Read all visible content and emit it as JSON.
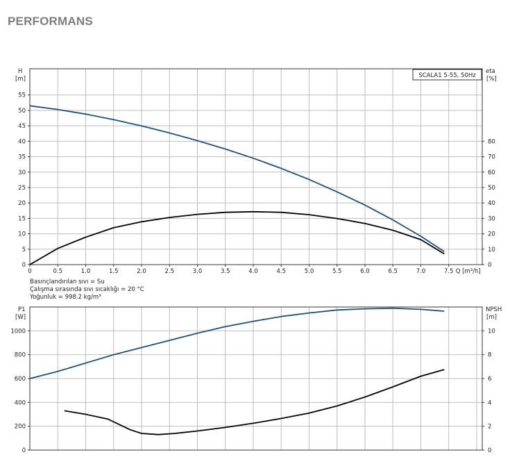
{
  "page": {
    "title": "PERFORMANS"
  },
  "colors": {
    "head_curve": "#1f4e79",
    "efficiency_curve": "#000000",
    "power_curve": "#1f4e79",
    "npsh_curve": "#000000",
    "grid": "#bdbdbd"
  },
  "notes": [
    "Basınçlandırılan sıvı = Su",
    "Çalışma sırasında sıvı sıcaklığı = 20 °C",
    "Yoğunluk = 998.2 kg/m³"
  ],
  "chart_data": [
    {
      "type": "line",
      "legend_label": "SCALA1 5-55, 50Hz",
      "xlabel": "Q [m³/h]",
      "x_ticks": [
        "0",
        "0.5",
        "1.0",
        "1.5",
        "2.0",
        "2.5",
        "3.0",
        "3.5",
        "4.0",
        "4.5",
        "5.0",
        "5.5",
        "6.0",
        "6.5",
        "7.0",
        "7.5"
      ],
      "xlim": [
        0,
        8.1
      ],
      "y_left": {
        "label": "H",
        "unit": "[m]",
        "ticks": [
          "0",
          "5",
          "10",
          "15",
          "20",
          "25",
          "30",
          "35",
          "40",
          "45",
          "50",
          "55"
        ],
        "lim": [
          0,
          63.5
        ]
      },
      "y_right": {
        "label": "eta",
        "unit": "[%]",
        "ticks": [
          "0",
          "10",
          "20",
          "30",
          "40",
          "50",
          "60",
          "70",
          "80"
        ],
        "lim": [
          0,
          127
        ]
      },
      "grid": true,
      "series": [
        {
          "axis": "left",
          "color": "#1f4e79",
          "x": [
            0,
            0.5,
            1.0,
            1.5,
            2.0,
            2.5,
            3.0,
            3.5,
            4.0,
            4.5,
            5.0,
            5.5,
            6.0,
            6.5,
            7.0,
            7.42
          ],
          "y": [
            51.5,
            50.3,
            48.8,
            47.0,
            45.0,
            42.7,
            40.2,
            37.5,
            34.5,
            31.2,
            27.6,
            23.6,
            19.3,
            14.5,
            9.2,
            4.2
          ]
        },
        {
          "axis": "right",
          "color": "#000000",
          "x": [
            0,
            0.5,
            1.0,
            1.5,
            2.0,
            2.5,
            3.0,
            3.5,
            4.0,
            4.5,
            5.0,
            5.5,
            6.0,
            6.5,
            7.0,
            7.42
          ],
          "y": [
            0,
            10.5,
            17.8,
            23.9,
            27.8,
            30.6,
            32.6,
            33.9,
            34.3,
            33.9,
            32.4,
            29.9,
            26.7,
            22.3,
            16.2,
            7
          ]
        }
      ]
    },
    {
      "type": "line",
      "xlim": [
        0,
        8.1
      ],
      "y_left": {
        "label": "P1",
        "unit": "[W]",
        "ticks": [
          "0",
          "200",
          "400",
          "600",
          "800",
          "1000"
        ],
        "lim": [
          0,
          1200
        ]
      },
      "y_right": {
        "label": "NPSH",
        "unit": "[m]",
        "ticks": [
          "0",
          "2",
          "4",
          "6",
          "8",
          "10"
        ],
        "lim": [
          0,
          12
        ]
      },
      "grid": true,
      "series": [
        {
          "axis": "left",
          "color": "#1f4e79",
          "x": [
            0,
            0.5,
            1.0,
            1.5,
            2.0,
            2.5,
            3.0,
            3.5,
            4.0,
            4.5,
            5.0,
            5.5,
            6.0,
            6.5,
            7.0,
            7.42
          ],
          "y": [
            600,
            660,
            730,
            800,
            860,
            920,
            980,
            1035,
            1080,
            1120,
            1150,
            1175,
            1185,
            1190,
            1180,
            1165
          ]
        },
        {
          "axis": "right",
          "color": "#000000",
          "x": [
            0.62,
            1.0,
            1.4,
            1.8,
            2.0,
            2.3,
            2.6,
            3.0,
            3.5,
            4.0,
            4.5,
            5.0,
            5.5,
            6.0,
            6.5,
            7.0,
            7.42
          ],
          "y": [
            3.3,
            3.0,
            2.6,
            1.7,
            1.4,
            1.3,
            1.4,
            1.6,
            1.9,
            2.25,
            2.65,
            3.1,
            3.7,
            4.45,
            5.3,
            6.2,
            6.75
          ]
        }
      ]
    }
  ]
}
